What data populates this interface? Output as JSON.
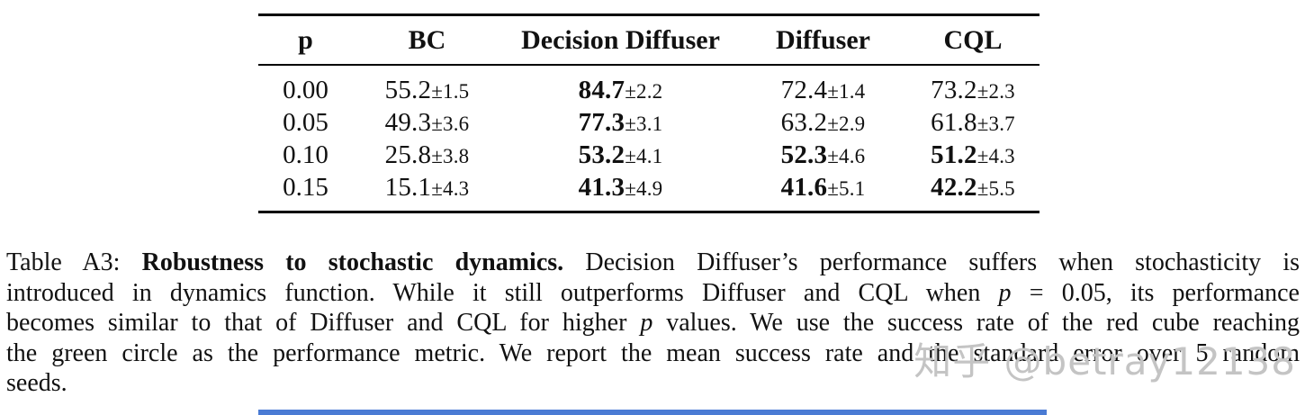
{
  "colors": {
    "text": "#111111",
    "rule": "#000000",
    "watermark": "#c4c4c4",
    "footer_bar": "#4a7bd4"
  },
  "table": {
    "columns": [
      "p",
      "BC",
      "Decision Diffuser",
      "Diffuser",
      "CQL"
    ],
    "rows": [
      {
        "p": "0.00",
        "cells": [
          {
            "value": "55.2",
            "err": "±1.5",
            "bold": false
          },
          {
            "value": "84.7",
            "err": "±2.2",
            "bold": true
          },
          {
            "value": "72.4",
            "err": "±1.4",
            "bold": false
          },
          {
            "value": "73.2",
            "err": "±2.3",
            "bold": false
          }
        ]
      },
      {
        "p": "0.05",
        "cells": [
          {
            "value": "49.3",
            "err": "±3.6",
            "bold": false
          },
          {
            "value": "77.3",
            "err": "±3.1",
            "bold": true
          },
          {
            "value": "63.2",
            "err": "±2.9",
            "bold": false
          },
          {
            "value": "61.8",
            "err": "±3.7",
            "bold": false
          }
        ]
      },
      {
        "p": "0.10",
        "cells": [
          {
            "value": "25.8",
            "err": "±3.8",
            "bold": false
          },
          {
            "value": "53.2",
            "err": "±4.1",
            "bold": true
          },
          {
            "value": "52.3",
            "err": "±4.6",
            "bold": true
          },
          {
            "value": "51.2",
            "err": "±4.3",
            "bold": true
          }
        ]
      },
      {
        "p": "0.15",
        "cells": [
          {
            "value": "15.1",
            "err": "±4.3",
            "bold": false
          },
          {
            "value": "41.3",
            "err": "±4.9",
            "bold": true
          },
          {
            "value": "41.6",
            "err": "±5.1",
            "bold": true
          },
          {
            "value": "42.2",
            "err": "±5.5",
            "bold": true
          }
        ]
      }
    ]
  },
  "caption": {
    "lines": [
      [
        {
          "text": "Table A3: ",
          "style": "normal"
        },
        {
          "text": "Robustness to stochastic dynamics.",
          "style": "bold"
        },
        {
          "text": " Decision Diffuser’s performance suffers when stochasticity is",
          "style": "normal"
        }
      ],
      [
        {
          "text": "introduced in dynamics function. While it still outperforms Diffuser and CQL when ",
          "style": "normal"
        },
        {
          "text": "p",
          "style": "italic"
        },
        {
          "text": " = 0.05, its performance",
          "style": "normal"
        }
      ],
      [
        {
          "text": "becomes similar to that of Diffuser and CQL for higher ",
          "style": "normal"
        },
        {
          "text": "p",
          "style": "italic"
        },
        {
          "text": " values. We use the success rate of the red cube reaching",
          "style": "normal"
        }
      ],
      [
        {
          "text": "the green circle as the performance metric. We report the mean success rate and the standard error over 5 random",
          "style": "normal"
        }
      ],
      [
        {
          "text": "seeds.",
          "style": "normal"
        }
      ]
    ]
  },
  "watermark": {
    "text": "知乎 @betray12138"
  }
}
